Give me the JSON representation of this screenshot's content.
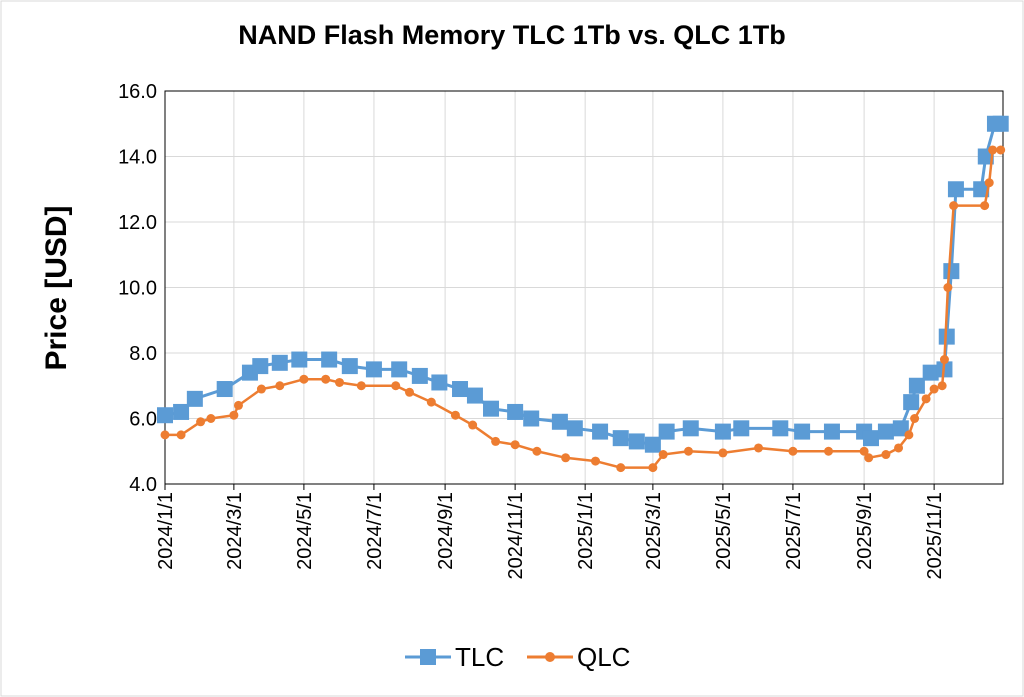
{
  "chart_data": {
    "type": "line",
    "title": "NAND Flash Memory TLC 1Tb vs. QLC 1Tb",
    "y_label": "Price [USD]",
    "xlim": [
      "2024/1/1",
      "2025/12/31"
    ],
    "xticks": [
      "2024/1/1",
      "2024/3/1",
      "2024/5/1",
      "2024/7/1",
      "2024/9/1",
      "2024/11/1",
      "2025/1/1",
      "2025/3/1",
      "2025/5/1",
      "2025/7/1",
      "2025/9/1",
      "2025/11/1"
    ],
    "ylim": [
      4,
      16
    ],
    "yticks": [
      {
        "value": 4,
        "label": "4.0"
      },
      {
        "value": 6,
        "label": "6.0"
      },
      {
        "value": 8,
        "label": "8.0"
      },
      {
        "value": 10,
        "label": "10.0"
      },
      {
        "value": 12,
        "label": "12.0"
      },
      {
        "value": 14,
        "label": "14.0"
      },
      {
        "value": 16,
        "label": "16.0"
      }
    ],
    "grid": true,
    "legend": "bottom",
    "series": [
      {
        "name": "TLC",
        "color": "#5b9bd5",
        "marker": "square",
        "x": [
          "2024/1/1",
          "2024/1/15",
          "2024/1/27",
          "2024/2/22",
          "2024/3/15",
          "2024/3/24",
          "2024/4/10",
          "2024/4/27",
          "2024/5/23",
          "2024/6/10",
          "2024/7/1",
          "2024/7/23",
          "2024/8/10",
          "2024/8/27",
          "2024/9/14",
          "2024/9/27",
          "2024/10/11",
          "2024/11/1",
          "2024/11/15",
          "2024/12/10",
          "2024/12/23",
          "2025/1/14",
          "2025/2/1",
          "2025/2/15",
          "2025/3/1",
          "2025/3/13",
          "2025/4/3",
          "2025/5/1",
          "2025/5/17",
          "2025/6/20",
          "2025/7/9",
          "2025/8/4",
          "2025/9/1",
          "2025/9/7",
          "2025/9/20",
          "2025/10/3",
          "2025/10/12",
          "2025/10/17",
          "2025/10/29",
          "2025/11/10",
          "2025/11/12",
          "2025/11/16",
          "2025/11/20",
          "2025/12/12",
          "2025/12/16",
          "2025/12/24",
          "2025/12/29"
        ],
        "values": [
          6.1,
          6.2,
          6.6,
          6.9,
          7.4,
          7.6,
          7.7,
          7.8,
          7.8,
          7.6,
          7.5,
          7.5,
          7.3,
          7.1,
          6.9,
          6.7,
          6.3,
          6.2,
          6.0,
          5.9,
          5.7,
          5.6,
          5.4,
          5.3,
          5.2,
          5.6,
          5.7,
          5.6,
          5.7,
          5.7,
          5.6,
          5.6,
          5.6,
          5.4,
          5.6,
          5.7,
          6.5,
          7.0,
          7.4,
          7.5,
          8.5,
          10.5,
          13.0,
          13.0,
          14.0,
          15.0,
          15.0
        ]
      },
      {
        "name": "QLC",
        "color": "#ed7d31",
        "marker": "circle",
        "x": [
          "2024/1/1",
          "2024/1/15",
          "2024/2/1",
          "2024/2/10",
          "2024/3/1",
          "2024/3/5",
          "2024/3/25",
          "2024/4/10",
          "2024/5/1",
          "2024/5/20",
          "2024/6/1",
          "2024/6/20",
          "2024/7/20",
          "2024/8/1",
          "2024/8/20",
          "2024/9/10",
          "2024/9/25",
          "2024/10/15",
          "2024/11/1",
          "2024/11/20",
          "2024/12/15",
          "2025/1/10",
          "2025/2/1",
          "2025/3/1",
          "2025/3/10",
          "2025/4/1",
          "2025/5/1",
          "2025/6/1",
          "2025/7/1",
          "2025/8/1",
          "2025/9/1",
          "2025/9/5",
          "2025/9/20",
          "2025/10/1",
          "2025/10/10",
          "2025/10/15",
          "2025/10/25",
          "2025/11/1",
          "2025/11/8",
          "2025/11/10",
          "2025/11/13",
          "2025/11/18",
          "2025/12/15",
          "2025/12/19",
          "2025/12/22",
          "2025/12/29"
        ],
        "values": [
          5.5,
          5.5,
          5.9,
          6.0,
          6.1,
          6.4,
          6.9,
          7.0,
          7.2,
          7.2,
          7.1,
          7.0,
          7.0,
          6.8,
          6.5,
          6.1,
          5.8,
          5.3,
          5.2,
          5.0,
          4.8,
          4.7,
          4.5,
          4.5,
          4.9,
          5.0,
          4.95,
          5.1,
          5.0,
          5.0,
          5.0,
          4.8,
          4.9,
          5.1,
          5.5,
          6.0,
          6.6,
          6.9,
          7.0,
          7.8,
          10.0,
          12.5,
          12.5,
          13.2,
          14.2,
          14.2
        ]
      }
    ]
  }
}
